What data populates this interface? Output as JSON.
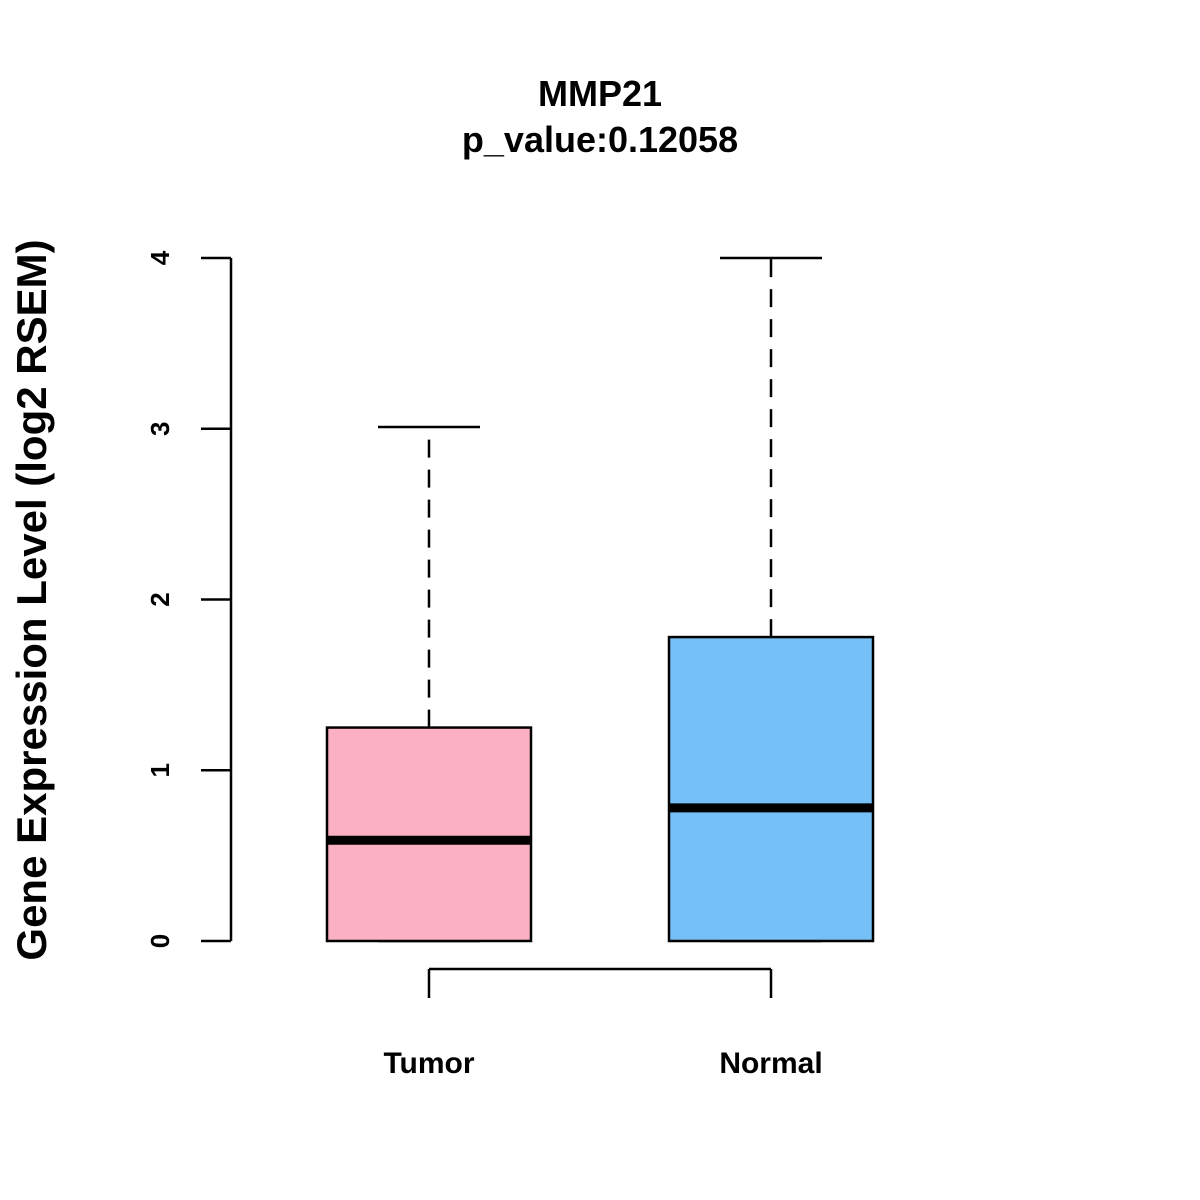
{
  "chart_data": {
    "type": "box",
    "title": "MMP21",
    "subtitle": "p_value:0.12058",
    "xlabel": "",
    "ylabel": "Gene Expression Level (log2 RSEM)",
    "ylim": [
      0,
      4
    ],
    "yticks": [
      0,
      1,
      2,
      3,
      4
    ],
    "categories": [
      "Tumor",
      "Normal"
    ],
    "boxes": [
      {
        "name": "Tumor",
        "min": 0,
        "q1": 0,
        "median": 0.59,
        "q3": 1.25,
        "max": 3.01,
        "color": "#FBB1C3"
      },
      {
        "name": "Normal",
        "min": 0,
        "q1": 0,
        "median": 0.78,
        "q3": 1.78,
        "max": 4.0,
        "color": "#76C0F8"
      }
    ],
    "comparison_bracket": {
      "from": "Tumor",
      "to": "Normal"
    },
    "grid": false
  }
}
